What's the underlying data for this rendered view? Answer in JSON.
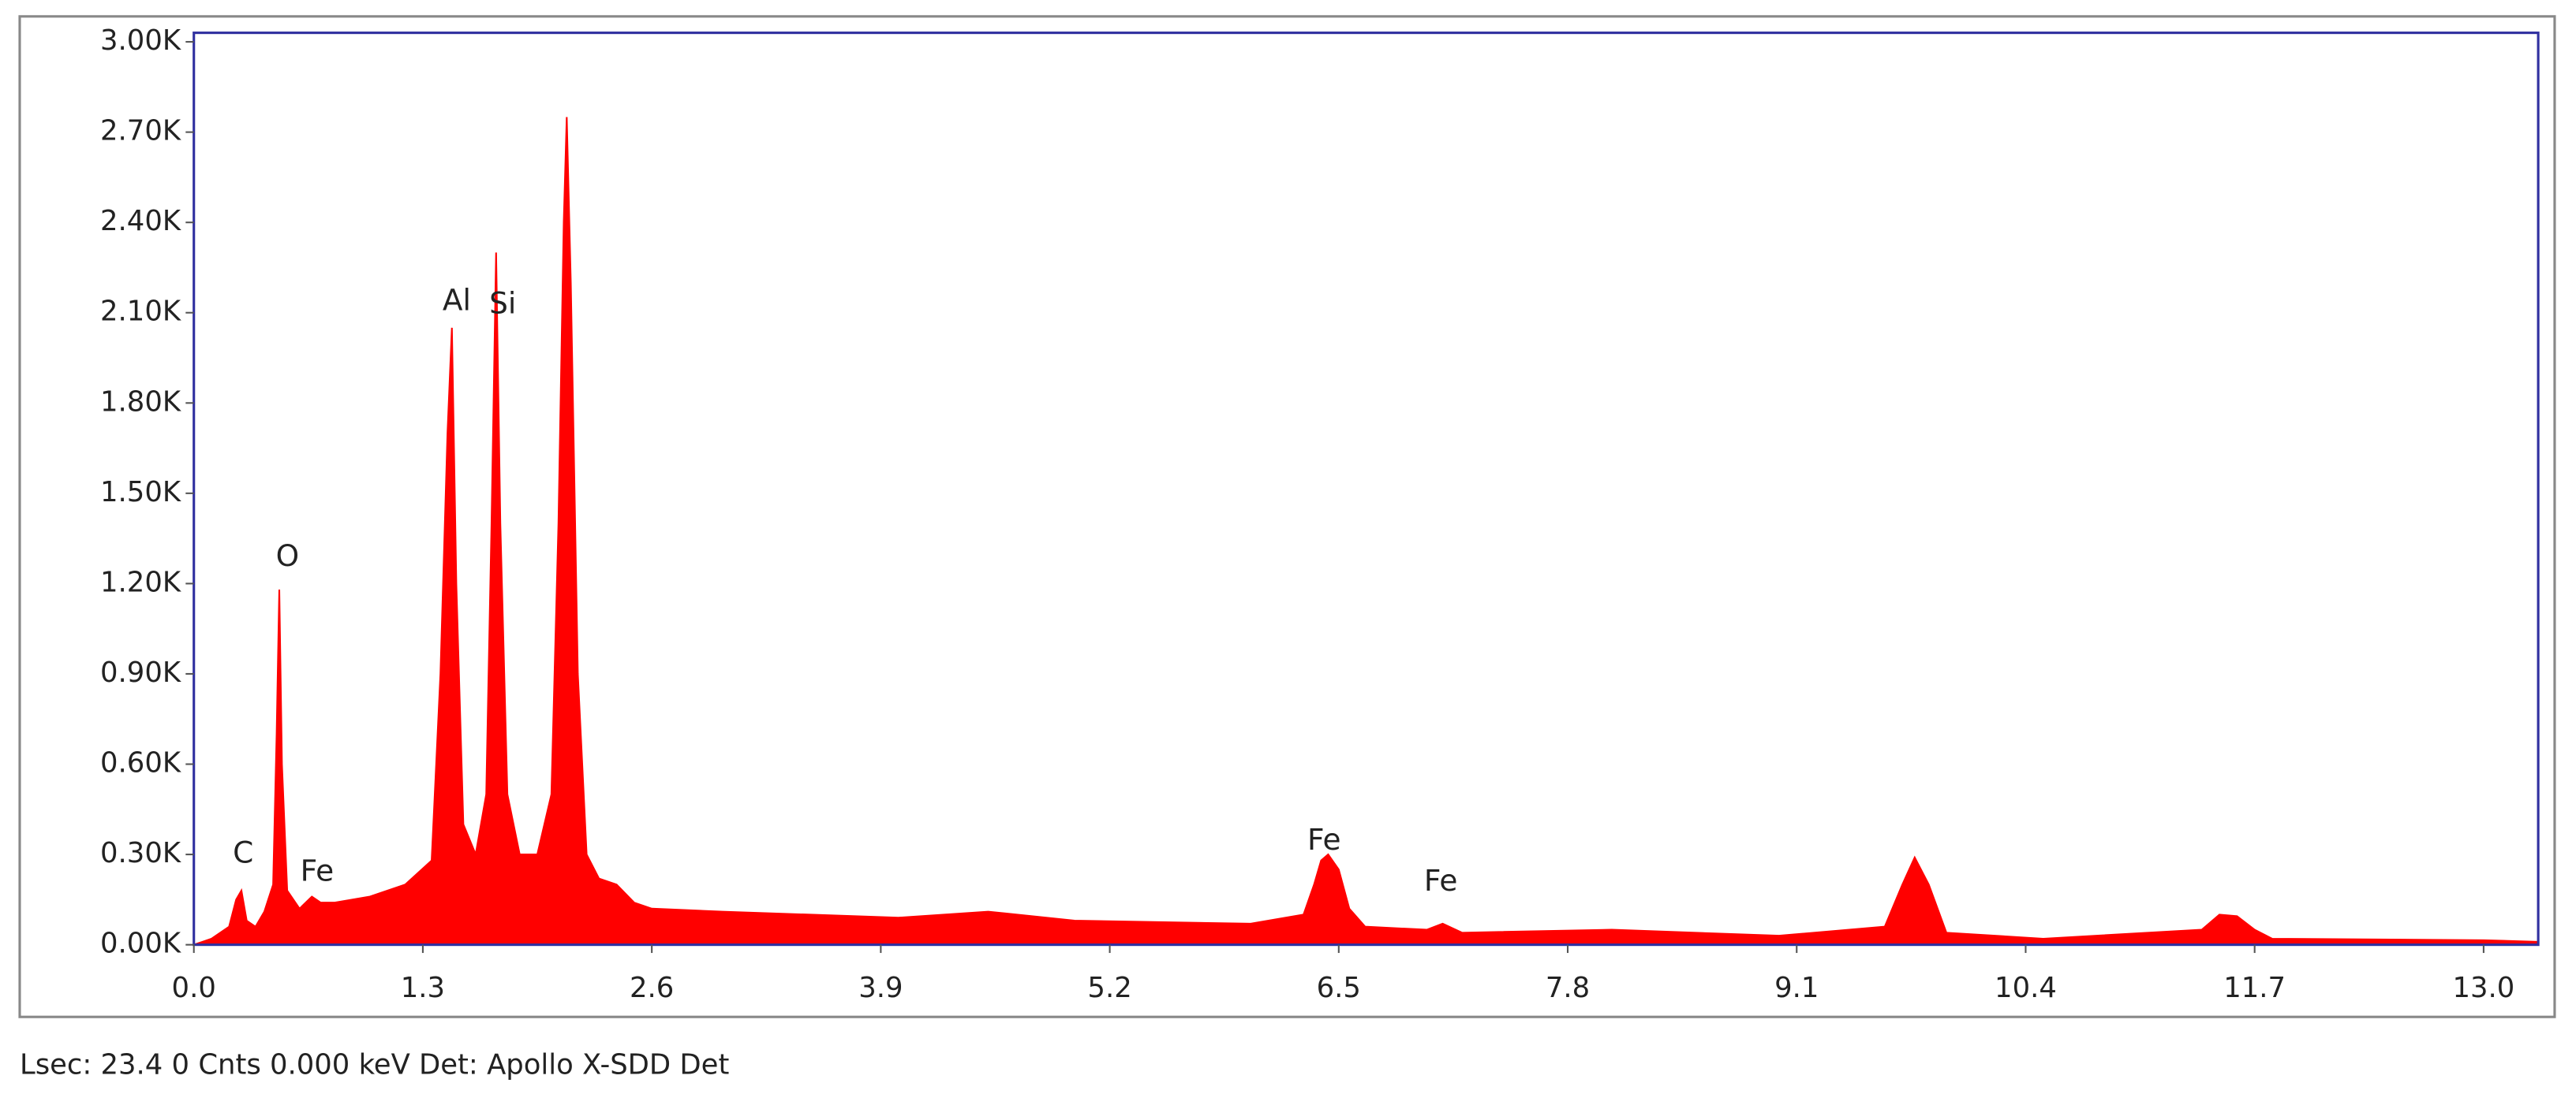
{
  "chart_data": {
    "type": "area",
    "color": "#ff0000",
    "x": [
      0.0,
      0.1,
      0.2,
      0.24,
      0.27,
      0.3,
      0.35,
      0.4,
      0.45,
      0.47,
      0.485,
      0.5,
      0.53,
      0.6,
      0.67,
      0.72,
      0.8,
      1.0,
      1.2,
      1.35,
      1.4,
      1.44,
      1.465,
      1.49,
      1.53,
      1.6,
      1.66,
      1.69,
      1.716,
      1.74,
      1.78,
      1.85,
      1.95,
      2.03,
      2.07,
      2.1,
      2.117,
      2.14,
      2.18,
      2.23,
      2.3,
      2.4,
      2.5,
      2.6,
      3.0,
      3.5,
      4.0,
      4.51,
      5.0,
      6.0,
      6.3,
      6.36,
      6.4,
      6.44,
      6.5,
      6.56,
      6.65,
      7.0,
      7.09,
      7.2,
      8.05,
      9.0,
      9.6,
      9.7,
      9.77,
      9.85,
      9.95,
      10.5,
      11.4,
      11.5,
      11.6,
      11.7,
      11.8,
      13.0,
      13.3
    ],
    "values": [
      0,
      20,
      60,
      150,
      180,
      80,
      60,
      110,
      200,
      700,
      1180,
      600,
      180,
      120,
      160,
      140,
      140,
      160,
      200,
      280,
      900,
      1700,
      2050,
      1200,
      400,
      300,
      500,
      1400,
      2300,
      1400,
      500,
      300,
      300,
      500,
      1400,
      2400,
      2750,
      2200,
      900,
      300,
      220,
      200,
      140,
      120,
      110,
      100,
      90,
      110,
      80,
      70,
      100,
      200,
      280,
      300,
      250,
      120,
      60,
      50,
      70,
      40,
      50,
      30,
      60,
      200,
      290,
      200,
      40,
      20,
      50,
      100,
      95,
      50,
      20,
      15,
      10
    ],
    "xlim": [
      0,
      13.31
    ],
    "ylim": [
      0,
      3030
    ],
    "xticks": [
      {
        "value": 0,
        "label": "0.0"
      },
      1.3,
      2.6,
      3.9,
      5.2,
      6.5,
      7.8,
      9.1,
      10.4,
      11.7,
      {
        "value": 13,
        "label": "13.0"
      }
    ],
    "yticks": [
      {
        "value": 0,
        "label": "0.00K"
      },
      {
        "value": 300,
        "label": "0.30K"
      },
      {
        "value": 600,
        "label": "0.60K"
      },
      {
        "value": 900,
        "label": "0.90K"
      },
      {
        "value": 1200,
        "label": "1.20K"
      },
      {
        "value": 1500,
        "label": "1.50K"
      },
      {
        "value": 1800,
        "label": "1.80K"
      },
      {
        "value": 2100,
        "label": "2.10K"
      },
      {
        "value": 2400,
        "label": "2.40K"
      },
      {
        "value": 2700,
        "label": "2.70K"
      },
      {
        "value": 3000,
        "label": "3.00K"
      }
    ],
    "annotations": [
      "C",
      "O",
      "Fe",
      "Al",
      "Si",
      "Fe",
      "Fe"
    ],
    "footer": "Lsec: 23.4 0 Cnts  0.000 keV Det: Apollo X-SDD Det"
  }
}
